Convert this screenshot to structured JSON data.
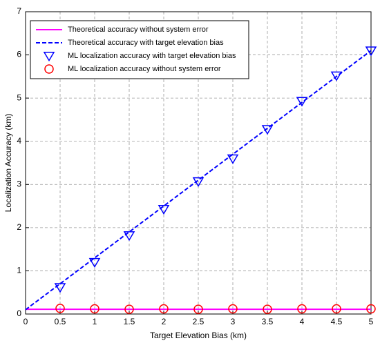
{
  "chart_data": {
    "type": "line",
    "xlabel": "Target Elevation Bias (km)",
    "ylabel": "Localization Accuracy (km)",
    "xlim": [
      0,
      5
    ],
    "ylim": [
      0,
      7
    ],
    "xticks": [
      0,
      0.5,
      1,
      1.5,
      2,
      2.5,
      3,
      3.5,
      4,
      4.5,
      5
    ],
    "yticks": [
      0,
      1,
      2,
      3,
      4,
      5,
      6,
      7
    ],
    "grid": true,
    "legend": "upper left",
    "series": [
      {
        "name": "Theoretical accuracy without system error",
        "color": "#ff00ff",
        "line_style": "solid",
        "marker": "none",
        "x": [
          0,
          0.5,
          1,
          1.5,
          2,
          2.5,
          3,
          3.5,
          4,
          4.5,
          5
        ],
        "values": [
          0.11,
          0.11,
          0.11,
          0.11,
          0.11,
          0.11,
          0.11,
          0.11,
          0.11,
          0.11,
          0.11
        ]
      },
      {
        "name": "Theoretical accuracy with target elevation bias",
        "color": "#0000ff",
        "line_style": "dashed",
        "marker": "none",
        "x": [
          0,
          0.5,
          1,
          1.5,
          2,
          2.5,
          3,
          3.5,
          4,
          4.5,
          5
        ],
        "values": [
          0.1,
          0.7,
          1.3,
          1.9,
          2.5,
          3.1,
          3.7,
          4.3,
          4.9,
          5.5,
          6.1
        ]
      },
      {
        "name": "ML localization accuracy with target elevation bias",
        "color": "#0000ff",
        "line_style": "none",
        "marker": "triangle-down",
        "x": [
          0.5,
          1,
          1.5,
          2,
          2.5,
          3,
          3.5,
          4,
          4.5,
          5
        ],
        "values": [
          0.62,
          1.2,
          1.82,
          2.43,
          3.07,
          3.6,
          4.28,
          4.93,
          5.52,
          6.1
        ]
      },
      {
        "name": "ML localization accuracy without system error",
        "color": "#ff0000",
        "line_style": "none",
        "marker": "circle",
        "x": [
          0.5,
          1,
          1.5,
          2,
          2.5,
          3,
          3.5,
          4,
          4.5,
          5
        ],
        "values": [
          0.13,
          0.12,
          0.11,
          0.12,
          0.11,
          0.12,
          0.11,
          0.12,
          0.12,
          0.12
        ]
      }
    ]
  }
}
